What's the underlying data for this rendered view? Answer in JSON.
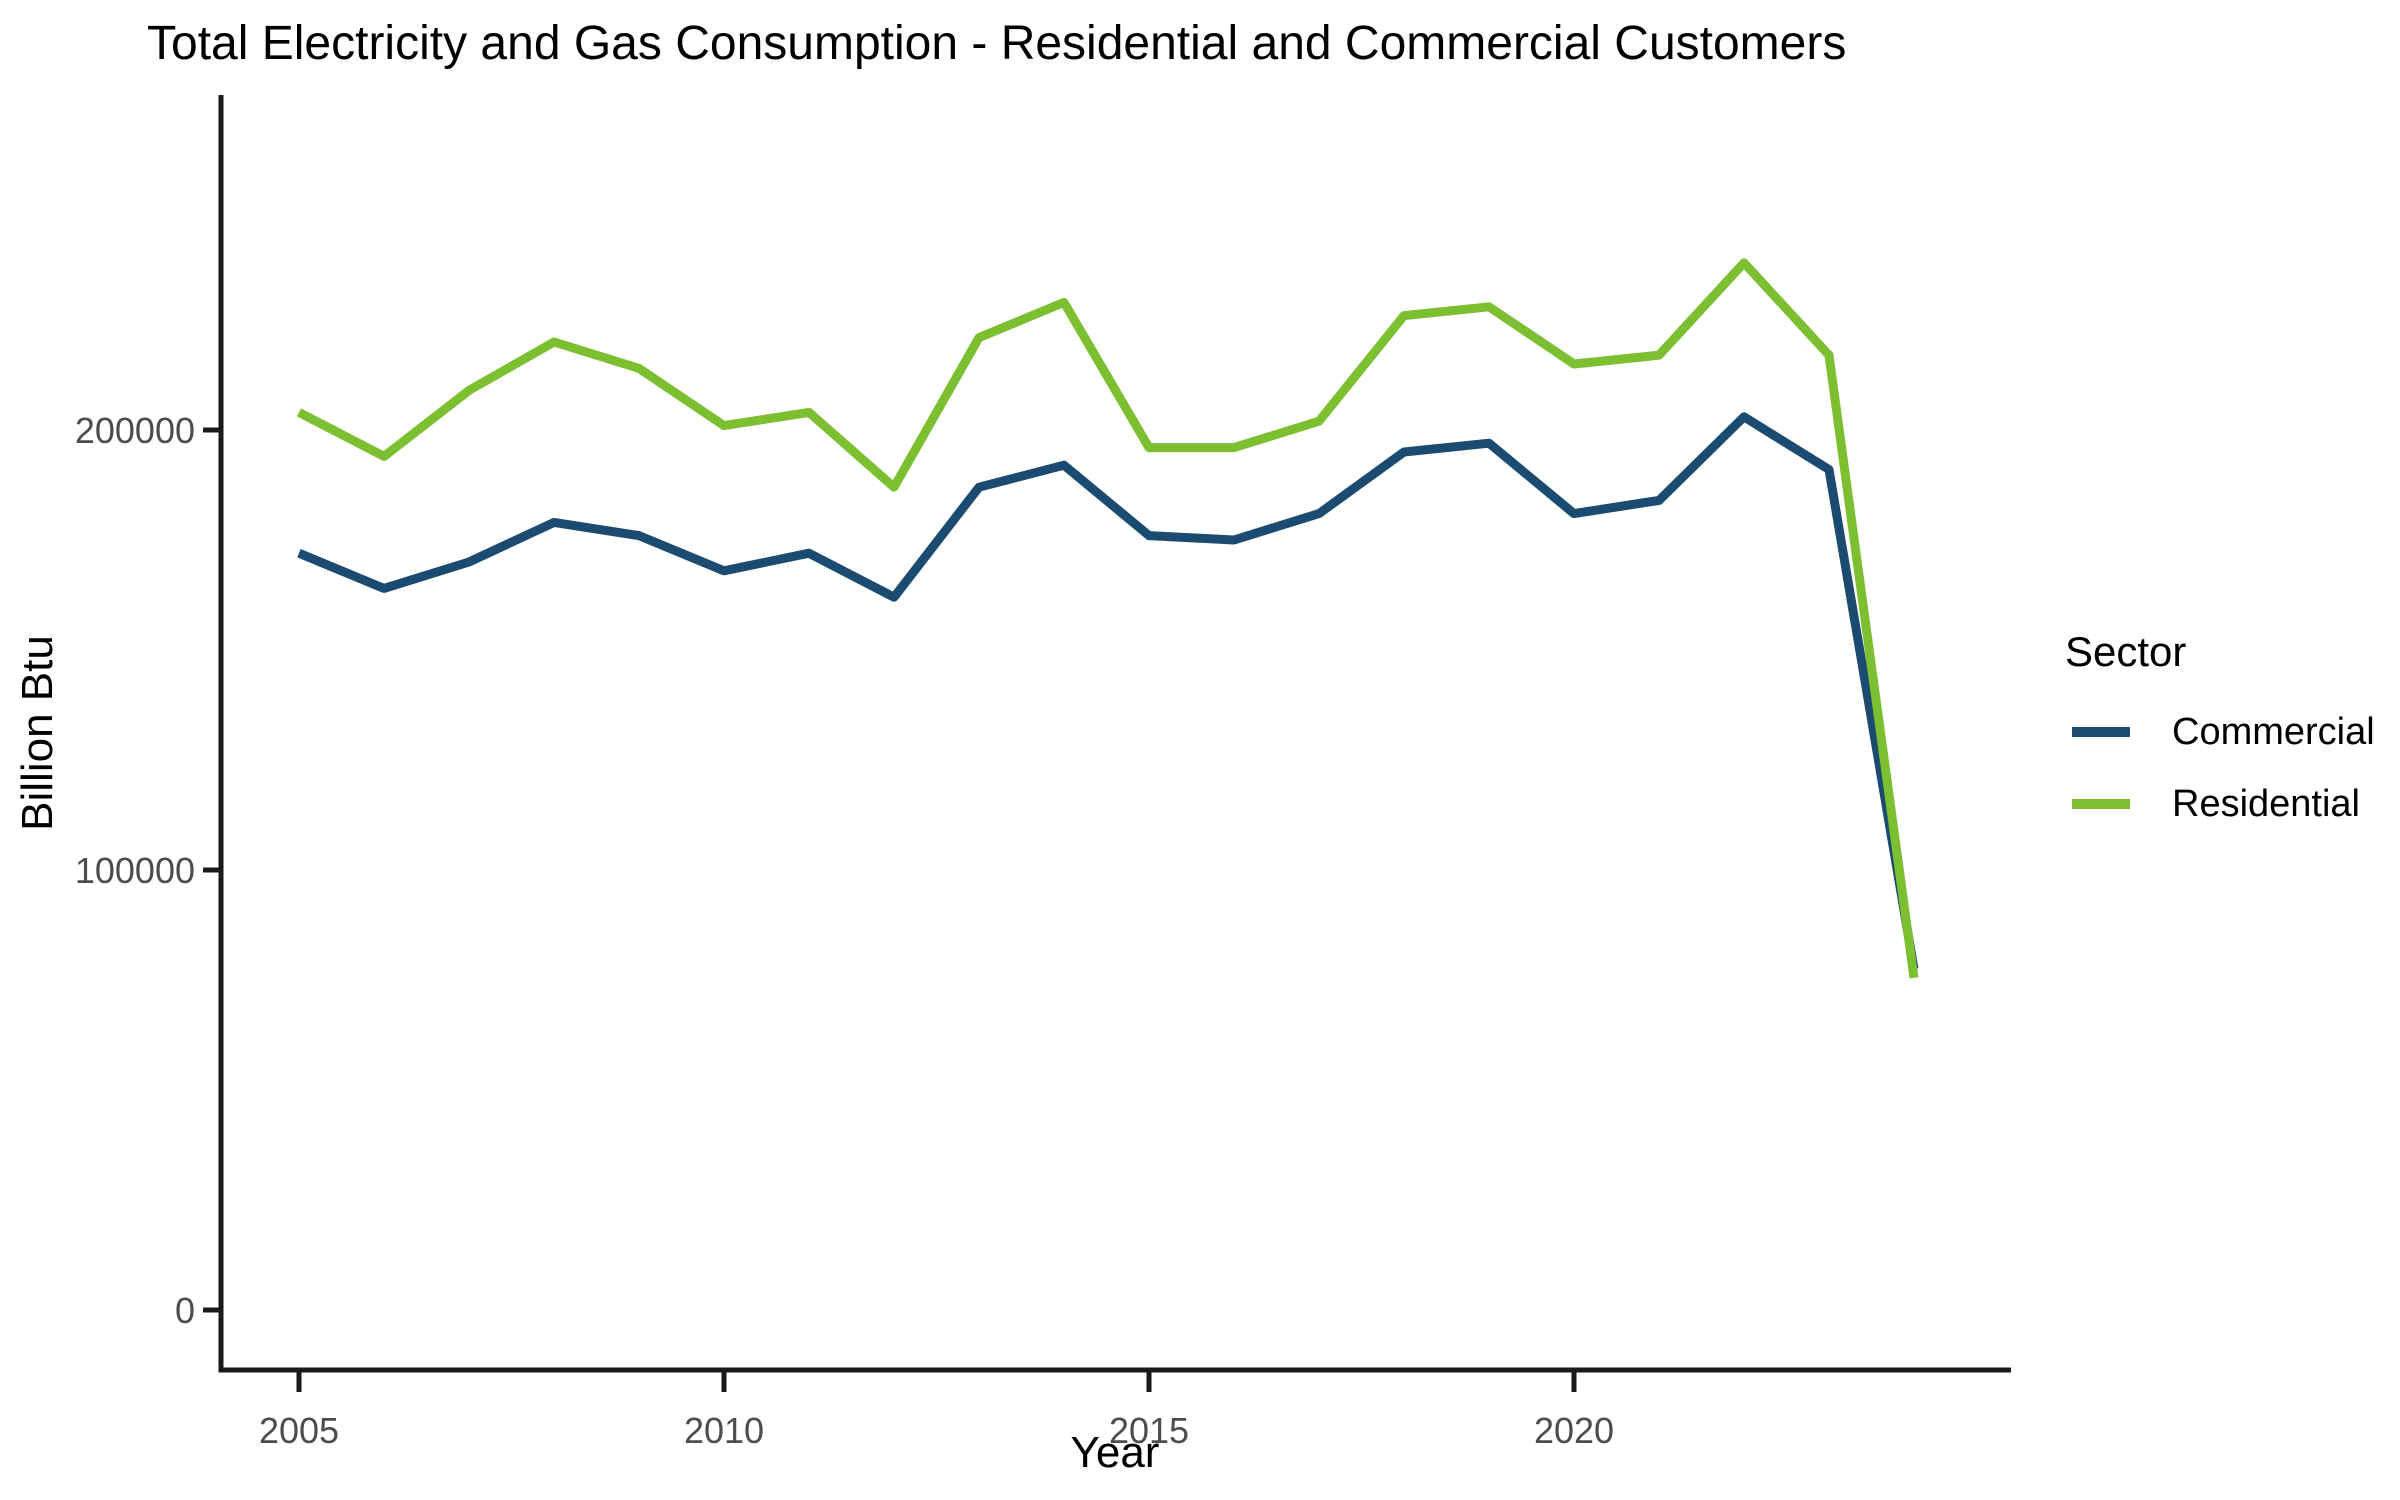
{
  "chart_data": {
    "type": "line",
    "title": "Total Electricity and Gas Consumption - Residential and Commercial Customers",
    "xlabel": "Year",
    "ylabel": "Billion Btu",
    "legend_title": "Sector",
    "legend_position": "right",
    "grid": false,
    "x": [
      2005,
      2006,
      2007,
      2008,
      2009,
      2010,
      2011,
      2012,
      2013,
      2014,
      2015,
      2016,
      2017,
      2018,
      2019,
      2020,
      2021,
      2022,
      2023,
      2024
    ],
    "series": [
      {
        "name": "Commercial",
        "color": "#1B4B70",
        "values": [
          172000,
          164000,
          170000,
          179000,
          176000,
          168000,
          172000,
          162000,
          187000,
          192000,
          176000,
          175000,
          181000,
          195000,
          197000,
          181000,
          184000,
          203000,
          191000,
          77500
        ]
      },
      {
        "name": "Residential",
        "color": "#7CBF31",
        "values": [
          204000,
          194000,
          209000,
          220000,
          214000,
          201000,
          204000,
          187000,
          221000,
          229000,
          196000,
          196000,
          202000,
          226000,
          228000,
          215000,
          217000,
          238000,
          217000,
          75500
        ]
      }
    ],
    "x_ticks": [
      2005,
      2010,
      2015,
      2020
    ],
    "y_ticks": [
      0,
      100000,
      200000
    ],
    "xlim": [
      2004.1,
      2025.1
    ],
    "ylim": [
      0,
      277000
    ],
    "axis_color": "#1A1A1A",
    "tick_label_color": "#4D4D4D"
  }
}
